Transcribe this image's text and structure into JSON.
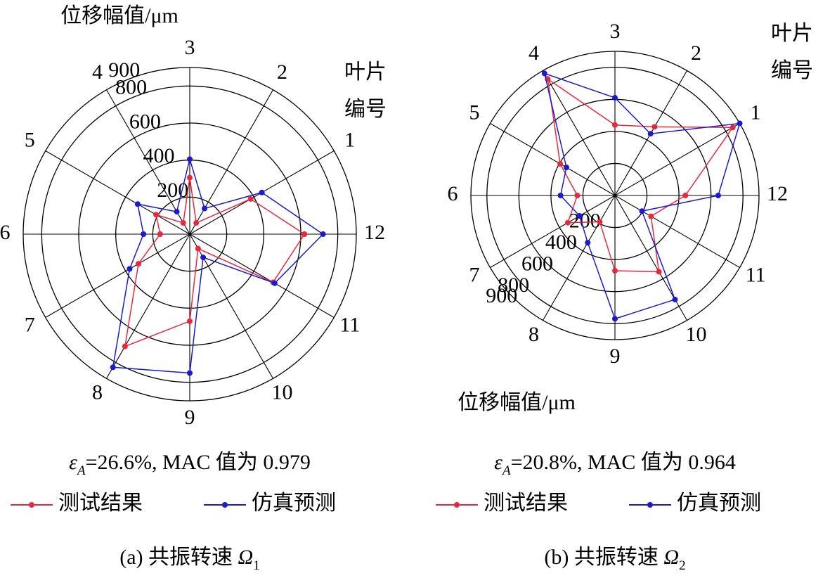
{
  "chart_data": [
    {
      "type": "radar",
      "radial_label": "位移幅值/μm",
      "angular_label": [
        "叶片",
        "编号"
      ],
      "categories": [
        "1",
        "2",
        "3",
        "4",
        "5",
        "6",
        "7",
        "8",
        "9",
        "10",
        "11",
        "12"
      ],
      "rlim": [
        0,
        900
      ],
      "rticks": [
        200,
        400,
        600,
        800,
        900
      ],
      "series": [
        {
          "name": "测试结果",
          "color": "#e8283c",
          "values": [
            380,
            70,
            305,
            70,
            210,
            160,
            320,
            700,
            470,
            90,
            520,
            620
          ]
        },
        {
          "name": "仿真预测",
          "color": "#1a1ad0",
          "values": [
            450,
            160,
            405,
            140,
            325,
            250,
            375,
            830,
            750,
            145,
            530,
            720
          ]
        }
      ],
      "annotation": {
        "symbol": "ε",
        "subscript": "A",
        "text": "=26.6%, MAC 值为 0.979"
      },
      "caption": {
        "text": "(a) 共振转速 ",
        "symbol": "Ω",
        "subscript": "1"
      }
    },
    {
      "type": "radar",
      "radial_label": "位移幅值/μm",
      "angular_label": [
        "叶片",
        "编号"
      ],
      "categories": [
        "1",
        "2",
        "3",
        "4",
        "5",
        "6",
        "7",
        "8",
        "9",
        "10",
        "11",
        "12"
      ],
      "rlim": [
        0,
        900
      ],
      "rticks": [
        200,
        400,
        600,
        800,
        900
      ],
      "series": [
        {
          "name": "测试结果",
          "color": "#e8283c",
          "values": [
            850,
            495,
            440,
            840,
            395,
            235,
            340,
            190,
            470,
            550,
            260,
            440
          ]
        },
        {
          "name": "仿真预测",
          "color": "#1a1ad0",
          "values": [
            900,
            445,
            610,
            880,
            350,
            340,
            255,
            340,
            770,
            750,
            195,
            645
          ]
        }
      ],
      "annotation": {
        "symbol": "ε",
        "subscript": "A",
        "text": "=20.8%, MAC 值为 0.964"
      },
      "caption": {
        "text": "(b) 共振转速 ",
        "symbol": "Ω",
        "subscript": "2"
      }
    }
  ]
}
